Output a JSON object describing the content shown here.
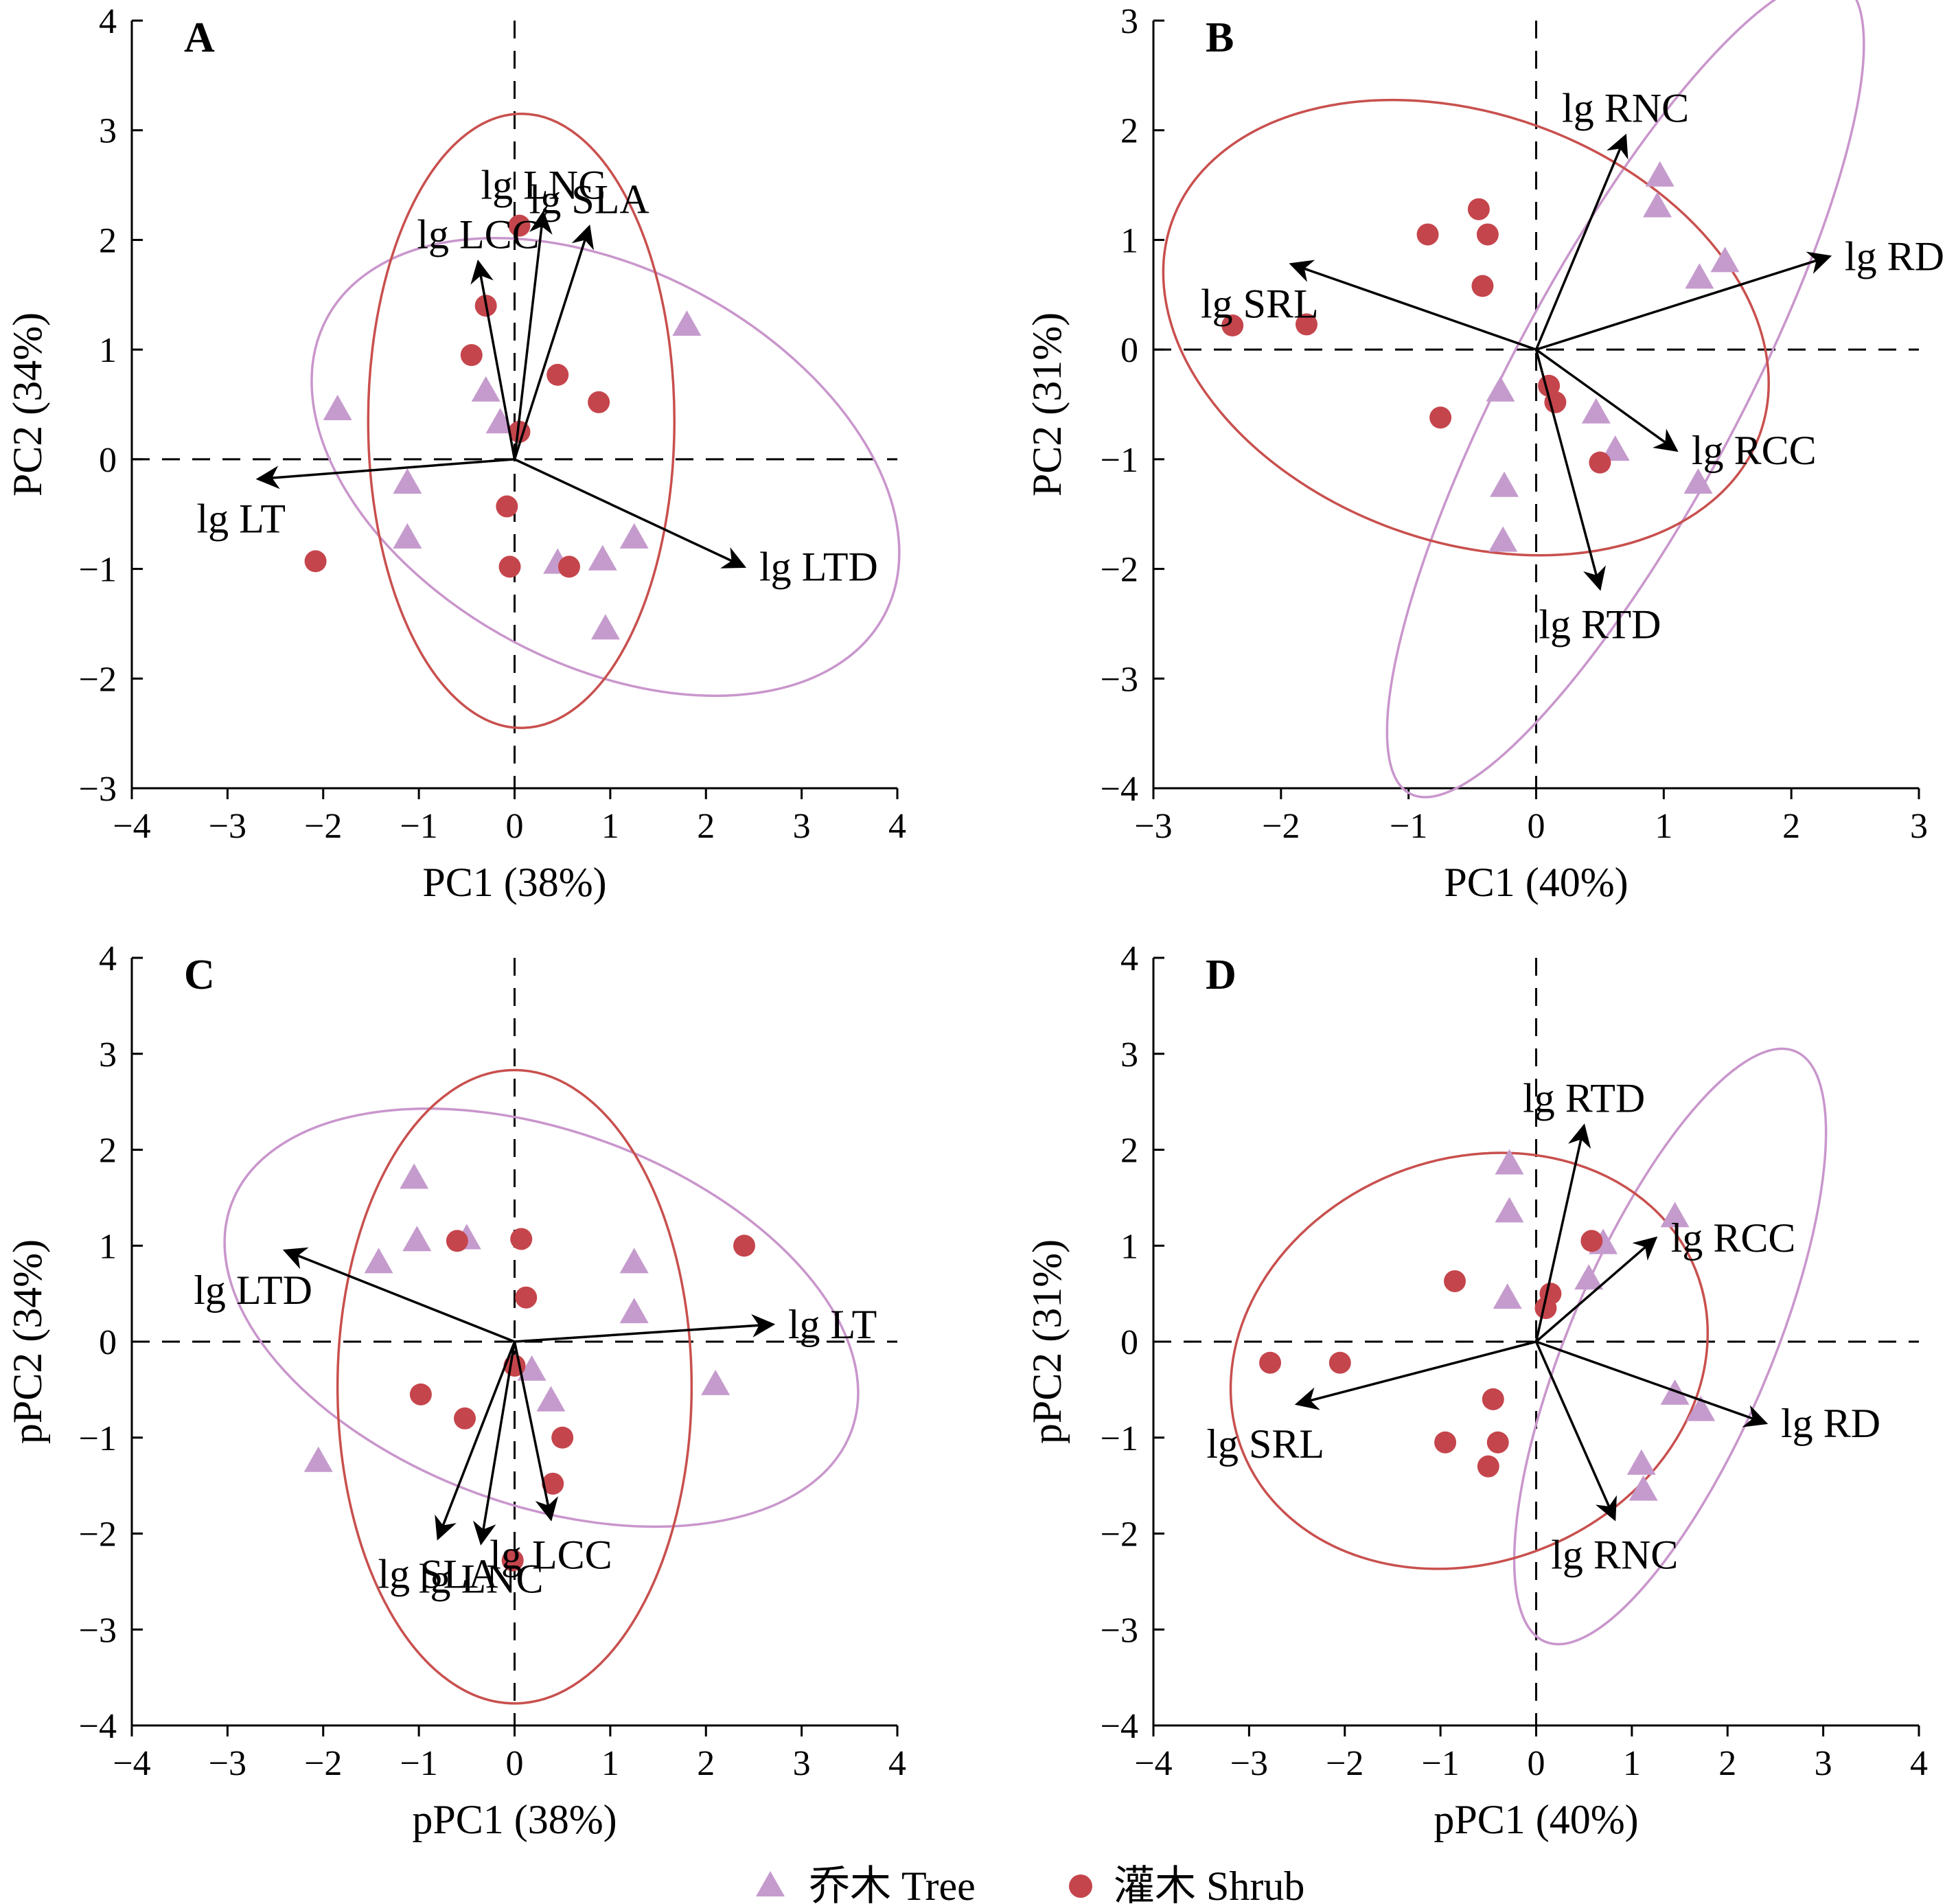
{
  "colors": {
    "tree": "#c59bcd",
    "shrub": "#c5454c",
    "tree_ellipse": "#c996cc",
    "shrub_ellipse": "#c8504e",
    "axis": "#000000"
  },
  "legend": {
    "tree_label": "乔木 Tree",
    "shrub_label": "灌木 Shrub"
  },
  "chart_data": [
    {
      "panel": "A",
      "type": "scatter",
      "xlabel": "PC1 (38%)",
      "ylabel": "PC2 (34%)",
      "xlim": [
        -4,
        4
      ],
      "ylim": [
        -3,
        4
      ],
      "xticks": [
        "−4",
        "−3",
        "−2",
        "−1",
        "0",
        "1",
        "2",
        "3",
        "4"
      ],
      "yticks": [
        "−3",
        "−2",
        "−1",
        "0",
        "1",
        "2",
        "3",
        "4"
      ],
      "tree_points": [
        [
          -1.85,
          0.45
        ],
        [
          -0.3,
          0.62
        ],
        [
          -0.15,
          0.33
        ],
        [
          -1.12,
          -0.22
        ],
        [
          -1.12,
          -0.72
        ],
        [
          0.45,
          -0.95
        ],
        [
          0.92,
          -0.92
        ],
        [
          1.25,
          -0.72
        ],
        [
          0.95,
          -1.55
        ],
        [
          1.8,
          1.22
        ]
      ],
      "shrub_points": [
        [
          0.05,
          2.13
        ],
        [
          -0.3,
          1.4
        ],
        [
          -0.45,
          0.95
        ],
        [
          0.45,
          0.77
        ],
        [
          0.88,
          0.52
        ],
        [
          0.05,
          0.25
        ],
        [
          -0.08,
          -0.43
        ],
        [
          -0.05,
          -0.98
        ],
        [
          0.57,
          -0.98
        ],
        [
          -2.08,
          -0.93
        ]
      ],
      "vectors": [
        {
          "label": "lg LNC",
          "x": 0.3,
          "y": 2.25
        },
        {
          "label": "lg LCC",
          "x": -0.38,
          "y": 1.8
        },
        {
          "label": "lg SLA",
          "x": 0.78,
          "y": 2.12
        },
        {
          "label": "lg LT",
          "x": -2.68,
          "y": -0.18
        },
        {
          "label": "lg LTD",
          "x": 2.4,
          "y": -0.98
        }
      ],
      "tree_ellipse": {
        "cx": 0.95,
        "cy": -0.07,
        "rx": 3.3,
        "ry": 1.8,
        "angle_deg": -28
      },
      "shrub_ellipse": {
        "cx": 0.07,
        "cy": 0.35,
        "rx": 1.6,
        "ry": 2.8,
        "angle_deg": 0
      }
    },
    {
      "panel": "B",
      "type": "scatter",
      "xlabel": "PC1 (40%)",
      "ylabel": "PC2 (31%)",
      "xlim": [
        -3,
        3
      ],
      "ylim": [
        -4,
        3
      ],
      "xticks": [
        "−3",
        "−2",
        "−1",
        "0",
        "1",
        "2",
        "3"
      ],
      "yticks": [
        "−4",
        "−3",
        "−2",
        "−1",
        "0",
        "1",
        "2",
        "3"
      ],
      "tree_points": [
        [
          0.97,
          1.58
        ],
        [
          0.95,
          1.3
        ],
        [
          1.48,
          0.8
        ],
        [
          1.28,
          0.65
        ],
        [
          -0.28,
          -0.38
        ],
        [
          0.47,
          -0.58
        ],
        [
          0.62,
          -0.92
        ],
        [
          1.27,
          -1.22
        ],
        [
          -0.25,
          -1.25
        ],
        [
          -0.26,
          -1.75
        ]
      ],
      "shrub_points": [
        [
          -0.45,
          1.28
        ],
        [
          -0.38,
          1.05
        ],
        [
          -0.85,
          1.05
        ],
        [
          -0.42,
          0.58
        ],
        [
          -2.38,
          0.22
        ],
        [
          -1.8,
          0.23
        ],
        [
          0.1,
          -0.33
        ],
        [
          0.15,
          -0.48
        ],
        [
          -0.75,
          -0.62
        ],
        [
          0.5,
          -1.03
        ]
      ],
      "vectors": [
        {
          "label": "lg RNC",
          "x": 0.7,
          "y": 1.95
        },
        {
          "label": "lg SRL",
          "x": -1.92,
          "y": 0.78
        },
        {
          "label": "lg RD",
          "x": 2.3,
          "y": 0.85
        },
        {
          "label": "lg RCC",
          "x": 1.1,
          "y": -0.92
        },
        {
          "label": "lg RTD",
          "x": 0.5,
          "y": -2.18
        }
      ],
      "tree_ellipse": {
        "cx": 0.7,
        "cy": -0.35,
        "rx": 3.6,
        "ry": 1.05,
        "angle_deg": 62
      },
      "shrub_ellipse": {
        "cx": -0.55,
        "cy": 0.2,
        "rx": 2.45,
        "ry": 1.95,
        "angle_deg": -20
      }
    },
    {
      "panel": "C",
      "type": "scatter",
      "xlabel": "pPC1 (38%)",
      "ylabel": "pPC2 (34%)",
      "xlim": [
        -4,
        4
      ],
      "ylim": [
        -4,
        4
      ],
      "xticks": [
        "−4",
        "−3",
        "−2",
        "−1",
        "0",
        "1",
        "2",
        "3",
        "4"
      ],
      "yticks": [
        "−4",
        "−3",
        "−2",
        "−1",
        "0",
        "1",
        "2",
        "3",
        "4"
      ],
      "tree_points": [
        [
          -1.05,
          1.7
        ],
        [
          -1.02,
          1.05
        ],
        [
          -0.5,
          1.07
        ],
        [
          -1.42,
          0.82
        ],
        [
          1.25,
          0.82
        ],
        [
          1.25,
          0.3
        ],
        [
          2.1,
          -0.45
        ],
        [
          0.18,
          -0.3
        ],
        [
          0.38,
          -0.62
        ],
        [
          -2.05,
          -1.25
        ]
      ],
      "shrub_points": [
        [
          0.07,
          1.07
        ],
        [
          -0.6,
          1.05
        ],
        [
          2.4,
          1.0
        ],
        [
          0.12,
          0.46
        ],
        [
          0.0,
          -0.25
        ],
        [
          -0.98,
          -0.55
        ],
        [
          -0.52,
          -0.8
        ],
        [
          0.5,
          -1.0
        ],
        [
          0.4,
          -1.48
        ],
        [
          -0.02,
          -2.28
        ]
      ],
      "vectors": [
        {
          "label": "lg LTD",
          "x": -2.4,
          "y": 0.95
        },
        {
          "label": "lg LT",
          "x": 2.7,
          "y": 0.18
        },
        {
          "label": "lg SLA",
          "x": -0.8,
          "y": -2.05
        },
        {
          "label": "lg LNC",
          "x": -0.35,
          "y": -2.1
        },
        {
          "label": "lg LCC",
          "x": 0.38,
          "y": -1.85
        }
      ],
      "tree_ellipse": {
        "cx": 0.28,
        "cy": 0.25,
        "rx": 3.45,
        "ry": 1.95,
        "angle_deg": -20
      },
      "shrub_ellipse": {
        "cx": 0.0,
        "cy": -0.47,
        "rx": 1.85,
        "ry": 3.3,
        "angle_deg": 0
      }
    },
    {
      "panel": "D",
      "type": "scatter",
      "xlabel": "pPC1 (40%)",
      "ylabel": "pPC2 (31%)",
      "xlim": [
        -4,
        4
      ],
      "ylim": [
        -4,
        4
      ],
      "xticks": [
        "−4",
        "−3",
        "−2",
        "−1",
        "0",
        "1",
        "2",
        "3",
        "4"
      ],
      "yticks": [
        "−4",
        "−3",
        "−2",
        "−1",
        "0",
        "1",
        "2",
        "3",
        "4"
      ],
      "tree_points": [
        [
          -0.28,
          1.85
        ],
        [
          -0.28,
          1.35
        ],
        [
          0.7,
          1.02
        ],
        [
          1.45,
          1.3
        ],
        [
          0.55,
          0.65
        ],
        [
          -0.3,
          0.45
        ],
        [
          1.45,
          -0.55
        ],
        [
          1.72,
          -0.72
        ],
        [
          1.1,
          -1.28
        ],
        [
          1.12,
          -1.55
        ]
      ],
      "shrub_points": [
        [
          0.58,
          1.05
        ],
        [
          -0.85,
          0.63
        ],
        [
          0.15,
          0.5
        ],
        [
          0.1,
          0.35
        ],
        [
          -2.78,
          -0.22
        ],
        [
          -2.05,
          -0.22
        ],
        [
          -0.45,
          -0.6
        ],
        [
          -0.95,
          -1.05
        ],
        [
          -0.4,
          -1.05
        ],
        [
          -0.5,
          -1.3
        ]
      ],
      "vectors": [
        {
          "label": "lg RTD",
          "x": 0.5,
          "y": 2.25
        },
        {
          "label": "lg RCC",
          "x": 1.25,
          "y": 1.08
        },
        {
          "label": "lg SRL",
          "x": -2.5,
          "y": -0.65
        },
        {
          "label": "lg RD",
          "x": 2.4,
          "y": -0.85
        },
        {
          "label": "lg RNC",
          "x": 0.82,
          "y": -1.85
        }
      ],
      "tree_ellipse": {
        "cx": 1.4,
        "cy": -0.05,
        "rx": 3.35,
        "ry": 1.05,
        "angle_deg": 67
      },
      "shrub_ellipse": {
        "cx": -0.7,
        "cy": -0.2,
        "rx": 2.55,
        "ry": 2.1,
        "angle_deg": 22
      }
    }
  ]
}
